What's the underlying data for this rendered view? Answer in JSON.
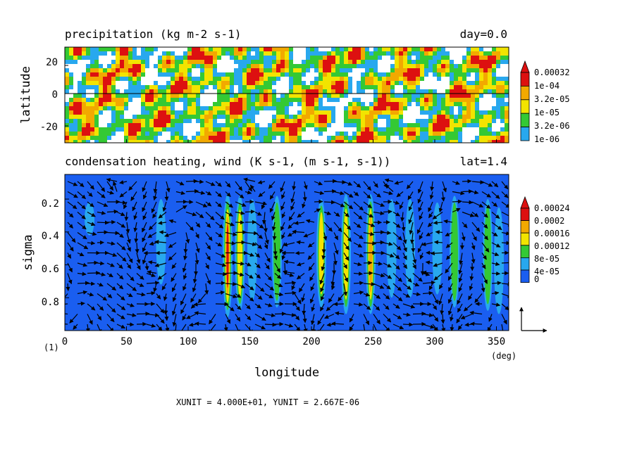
{
  "chart_data": [
    {
      "type": "heatmap",
      "title": "precipitation (kg m-2 s-1)",
      "title_right": "day=0.0",
      "ylabel": "latitude",
      "xlim": [
        0,
        360
      ],
      "ylim": [
        -30,
        30
      ],
      "yticks": [
        "20",
        "0",
        "-20"
      ],
      "zero_line": true,
      "colorbar": {
        "labels": [
          "0.00032",
          "1e-04",
          "3.2e-05",
          "1e-05",
          "3.2e-06",
          "1e-06"
        ],
        "colors": [
          "#dd1010",
          "#f2a900",
          "#f2e400",
          "#34c934",
          "#28a8ee",
          "#ffffff"
        ],
        "extend_top": true
      }
    },
    {
      "type": "heatmap",
      "title": "condensation heating, wind (K s-1, (m s-1, s-1))",
      "title_right": "lat=1.4",
      "xlabel": "longitude",
      "ylabel": "sigma",
      "xlim": [
        0,
        360
      ],
      "ylim": [
        1.0,
        0.05
      ],
      "xticks": [
        "0",
        "50",
        "100",
        "150",
        "200",
        "250",
        "300",
        "350"
      ],
      "yticks": [
        "0.2",
        "0.4",
        "0.6",
        "0.8"
      ],
      "x_unit": "(deg)",
      "panel_tag": "(1)",
      "heating_columns": [
        {
          "lon": 20,
          "top": 0.22,
          "bottom": 0.42,
          "peak": 6e-05
        },
        {
          "lon": 78,
          "top": 0.2,
          "bottom": 0.72,
          "peak": 6e-05
        },
        {
          "lon": 132,
          "top": 0.17,
          "bottom": 0.92,
          "peak": 0.00022
        },
        {
          "lon": 142,
          "top": 0.18,
          "bottom": 0.88,
          "peak": 0.00014
        },
        {
          "lon": 152,
          "top": 0.2,
          "bottom": 0.82,
          "peak": 6e-05
        },
        {
          "lon": 172,
          "top": 0.18,
          "bottom": 0.86,
          "peak": 0.00011
        },
        {
          "lon": 208,
          "top": 0.2,
          "bottom": 0.86,
          "peak": 0.00012
        },
        {
          "lon": 228,
          "top": 0.17,
          "bottom": 0.9,
          "peak": 0.00013
        },
        {
          "lon": 248,
          "top": 0.17,
          "bottom": 0.9,
          "peak": 0.00018
        },
        {
          "lon": 265,
          "top": 0.2,
          "bottom": 0.8,
          "peak": 6e-05
        },
        {
          "lon": 280,
          "top": 0.2,
          "bottom": 0.8,
          "peak": 6e-05
        },
        {
          "lon": 302,
          "top": 0.22,
          "bottom": 0.78,
          "peak": 5e-05
        },
        {
          "lon": 316,
          "top": 0.18,
          "bottom": 0.86,
          "peak": 0.0001
        },
        {
          "lon": 343,
          "top": 0.2,
          "bottom": 0.88,
          "peak": 9e-05
        },
        {
          "lon": 352,
          "top": 0.25,
          "bottom": 0.9,
          "peak": 5e-05
        }
      ],
      "colorbar": {
        "labels": [
          "0.00024",
          "0.0002",
          "0.00016",
          "0.00012",
          "8e-05",
          "4e-05",
          "0"
        ],
        "colors": [
          "#dd1010",
          "#f2a900",
          "#f2e400",
          "#34c934",
          "#28a8ee",
          "#1a5ef0"
        ],
        "extend_top": true
      }
    }
  ],
  "footer": "XUNIT = 4.000E+01, YUNIT = 2.667E-06"
}
